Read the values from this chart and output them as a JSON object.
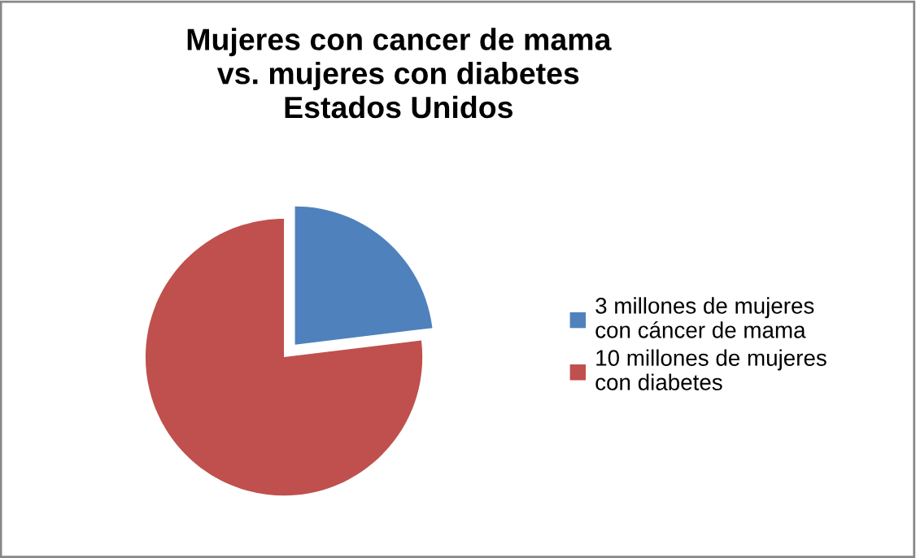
{
  "chart_data": {
    "type": "pie",
    "title": "Mujeres con cancer de mama\nvs. mujeres con diabetes\nEstados Unidos",
    "categories": [
      "3 millones de mujeres\ncon cáncer de mama",
      "10 millones de mujeres\ncon diabetes"
    ],
    "values": [
      3,
      10
    ],
    "colors": [
      "#4f81bd",
      "#c0504d"
    ],
    "legend": "right"
  }
}
